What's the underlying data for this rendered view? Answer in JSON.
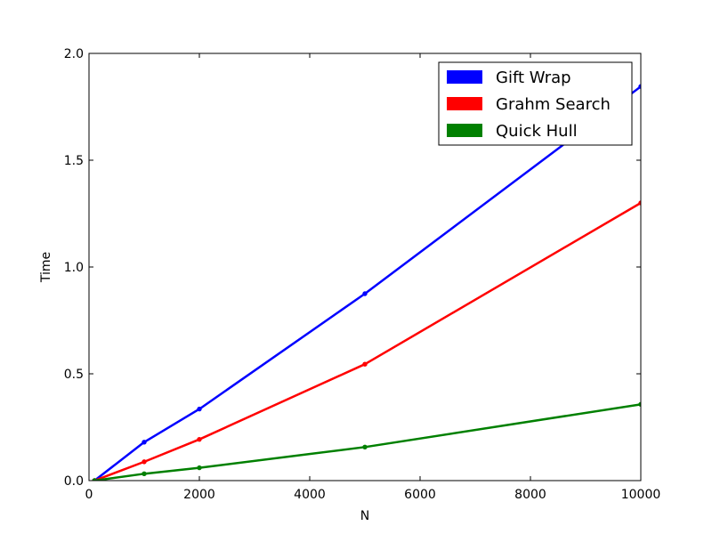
{
  "chart_data": {
    "type": "line",
    "title": "",
    "xlabel": "N",
    "ylabel": "Time",
    "xlim": [
      0,
      10000
    ],
    "ylim": [
      0,
      2.0
    ],
    "x_ticks": [
      0,
      2000,
      4000,
      6000,
      8000,
      10000
    ],
    "x_tick_labels": [
      "0",
      "2000",
      "4000",
      "6000",
      "8000",
      "10000"
    ],
    "y_ticks": [
      0,
      0.5,
      1.0,
      1.5,
      2.0
    ],
    "y_tick_labels": [
      "0.0",
      "0.5",
      "1.0",
      "1.5",
      "2.0"
    ],
    "grid": false,
    "legend_position": "top-right",
    "x": [
      100,
      1000,
      2000,
      5000,
      10000
    ],
    "series": [
      {
        "name": "Gift Wrap",
        "color": "#0000ff",
        "values": [
          0.0,
          0.18,
          0.335,
          0.875,
          1.845
        ]
      },
      {
        "name": "Grahm Search",
        "color": "#ff0000",
        "values": [
          0.0,
          0.088,
          0.193,
          0.545,
          1.3
        ]
      },
      {
        "name": "Quick Hull",
        "color": "#008000",
        "values": [
          0.0,
          0.032,
          0.06,
          0.157,
          0.357
        ]
      }
    ]
  }
}
